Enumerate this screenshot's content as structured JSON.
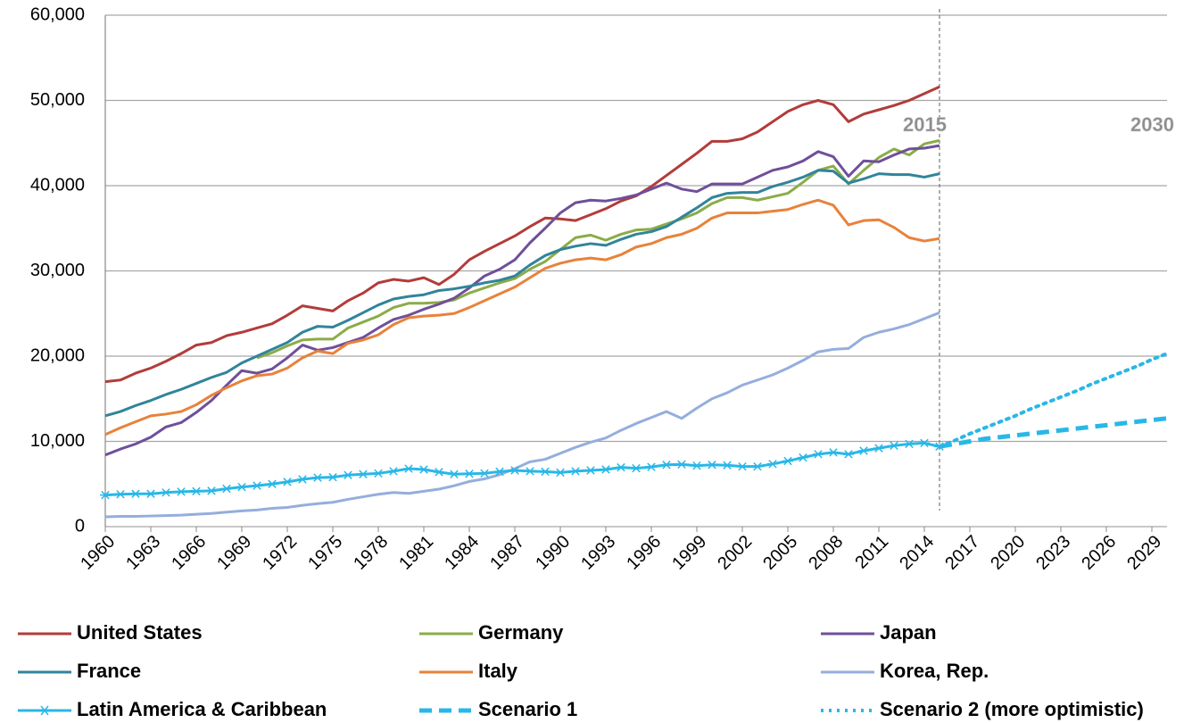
{
  "chart_data": {
    "type": "line",
    "x": [
      1960,
      1961,
      1962,
      1963,
      1964,
      1965,
      1966,
      1967,
      1968,
      1969,
      1970,
      1971,
      1972,
      1973,
      1974,
      1975,
      1976,
      1977,
      1978,
      1979,
      1980,
      1981,
      1982,
      1983,
      1984,
      1985,
      1986,
      1987,
      1988,
      1989,
      1990,
      1991,
      1992,
      1993,
      1994,
      1995,
      1996,
      1997,
      1998,
      1999,
      2000,
      2001,
      2002,
      2003,
      2004,
      2005,
      2006,
      2007,
      2008,
      2009,
      2010,
      2011,
      2012,
      2013,
      2014,
      2015,
      2016,
      2017,
      2018,
      2019,
      2020,
      2021,
      2022,
      2023,
      2024,
      2025,
      2026,
      2027,
      2028,
      2029,
      2030
    ],
    "xlim": [
      1960,
      2030
    ],
    "xticks": [
      1960,
      1963,
      1966,
      1969,
      1972,
      1975,
      1978,
      1981,
      1984,
      1987,
      1990,
      1993,
      1996,
      1999,
      2002,
      2005,
      2008,
      2011,
      2014,
      2017,
      2020,
      2023,
      2026,
      2029
    ],
    "ylim": [
      0,
      60000
    ],
    "yticks": [
      {
        "value": 0,
        "label": "0"
      },
      {
        "value": 10000,
        "label": "10,000"
      },
      {
        "value": 20000,
        "label": "20,000"
      },
      {
        "value": 30000,
        "label": "30,000"
      },
      {
        "value": 40000,
        "label": "40,000"
      },
      {
        "value": 50000,
        "label": "50,000"
      },
      {
        "value": 60000,
        "label": "60,000"
      }
    ],
    "grid": true,
    "vline": 2015,
    "annotations": [
      {
        "text": "2015",
        "x": 2015
      },
      {
        "text": "2030",
        "x": 2030
      }
    ],
    "series": [
      {
        "name": "United States",
        "color": "#b23c3a",
        "style": "solid",
        "values": [
          17000,
          17200,
          18000,
          18600,
          19400,
          20300,
          21300,
          21600,
          22400,
          22800,
          23300,
          23800,
          24800,
          25900,
          25600,
          25300,
          26500,
          27400,
          28600,
          29000,
          28800,
          29200,
          28400,
          29600,
          31300,
          32300,
          33200,
          34100,
          35200,
          36200,
          36100,
          35900,
          36600,
          37300,
          38200,
          38800,
          39900,
          41200,
          42500,
          43800,
          45200,
          45200,
          45500,
          46300,
          47500,
          48700,
          49500,
          50000,
          49500,
          47500,
          48400,
          48900,
          49400,
          50000,
          50800,
          51600,
          null,
          null,
          null,
          null,
          null,
          null,
          null,
          null,
          null,
          null,
          null,
          null,
          null,
          null,
          null
        ]
      },
      {
        "name": "Germany",
        "color": "#8aac48",
        "style": "solid",
        "values": [
          null,
          null,
          null,
          null,
          null,
          null,
          null,
          null,
          null,
          null,
          19800,
          20400,
          21200,
          21900,
          22000,
          22000,
          23300,
          24000,
          24700,
          25700,
          26200,
          26200,
          26300,
          26600,
          27400,
          28000,
          28600,
          29100,
          30200,
          31100,
          32500,
          33900,
          34200,
          33600,
          34300,
          34800,
          34900,
          35500,
          36100,
          36800,
          37900,
          38600,
          38600,
          38300,
          38700,
          39100,
          40400,
          41800,
          42300,
          40200,
          41800,
          43300,
          44300,
          43600,
          44900,
          45300,
          null,
          null,
          null,
          null,
          null,
          null,
          null,
          null,
          null,
          null,
          null,
          null,
          null,
          null,
          null
        ]
      },
      {
        "name": "Japan",
        "color": "#6f4f9a",
        "style": "solid",
        "values": [
          8400,
          9100,
          9700,
          10500,
          11700,
          12200,
          13400,
          14800,
          16600,
          18300,
          18000,
          18500,
          19800,
          21300,
          20700,
          21000,
          21600,
          22200,
          23300,
          24300,
          24800,
          25500,
          26100,
          26800,
          28000,
          29400,
          30200,
          31300,
          33300,
          35000,
          36800,
          38000,
          38300,
          38200,
          38500,
          38900,
          39600,
          40300,
          39600,
          39300,
          40200,
          40200,
          40200,
          41000,
          41800,
          42200,
          42900,
          44000,
          43400,
          41100,
          42900,
          42800,
          43600,
          44300,
          44400,
          44700,
          null,
          null,
          null,
          null,
          null,
          null,
          null,
          null,
          null,
          null,
          null,
          null,
          null,
          null,
          null
        ]
      },
      {
        "name": "France",
        "color": "#31849b",
        "style": "solid",
        "values": [
          13000,
          13500,
          14200,
          14800,
          15500,
          16100,
          16800,
          17500,
          18100,
          19200,
          20000,
          20800,
          21600,
          22800,
          23500,
          23400,
          24200,
          25100,
          26000,
          26700,
          27000,
          27200,
          27700,
          27900,
          28200,
          28600,
          28900,
          29400,
          30700,
          31800,
          32500,
          32900,
          33200,
          33000,
          33700,
          34300,
          34600,
          35200,
          36300,
          37400,
          38600,
          39100,
          39200,
          39200,
          39900,
          40400,
          41000,
          41800,
          41700,
          40300,
          40800,
          41400,
          41300,
          41300,
          41000,
          41400,
          null,
          null,
          null,
          null,
          null,
          null,
          null,
          null,
          null,
          null,
          null,
          null,
          null,
          null,
          null
        ]
      },
      {
        "name": "Italy",
        "color": "#e8823a",
        "style": "solid",
        "values": [
          10800,
          11600,
          12300,
          13000,
          13200,
          13500,
          14300,
          15400,
          16300,
          17100,
          17700,
          17900,
          18600,
          19800,
          20600,
          20300,
          21500,
          21900,
          22500,
          23700,
          24500,
          24700,
          24800,
          25000,
          25700,
          26500,
          27300,
          28100,
          29200,
          30300,
          30900,
          31300,
          31500,
          31300,
          31900,
          32800,
          33200,
          33900,
          34300,
          35000,
          36200,
          36800,
          36800,
          36800,
          37000,
          37200,
          37800,
          38300,
          37700,
          35400,
          35900,
          36000,
          35100,
          33900,
          33500,
          33800,
          null,
          null,
          null,
          null,
          null,
          null,
          null,
          null,
          null,
          null,
          null,
          null,
          null,
          null,
          null
        ]
      },
      {
        "name": "Korea, Rep.",
        "color": "#94aedd",
        "style": "solid",
        "values": [
          1150,
          1200,
          1200,
          1250,
          1300,
          1350,
          1450,
          1550,
          1700,
          1850,
          1950,
          2150,
          2250,
          2500,
          2700,
          2850,
          3200,
          3500,
          3800,
          4000,
          3900,
          4150,
          4400,
          4800,
          5300,
          5600,
          6100,
          6800,
          7600,
          7900,
          8600,
          9300,
          9900,
          10400,
          11300,
          12100,
          12800,
          13500,
          12700,
          13900,
          15000,
          15700,
          16600,
          17200,
          17800,
          18600,
          19500,
          20500,
          20800,
          20900,
          22200,
          22800,
          23200,
          23700,
          24400,
          25100,
          null,
          null,
          null,
          null,
          null,
          null,
          null,
          null,
          null,
          null,
          null,
          null,
          null,
          null,
          null
        ]
      },
      {
        "name": "Latin America & Caribbean",
        "color": "#29b7e8",
        "style": "solid",
        "marker": "asterisk",
        "values": [
          3700,
          3800,
          3850,
          3850,
          4000,
          4100,
          4150,
          4200,
          4450,
          4650,
          4800,
          5000,
          5250,
          5550,
          5750,
          5800,
          6050,
          6150,
          6250,
          6500,
          6800,
          6700,
          6400,
          6150,
          6200,
          6250,
          6450,
          6600,
          6500,
          6450,
          6350,
          6500,
          6600,
          6700,
          6950,
          6850,
          7000,
          7250,
          7300,
          7150,
          7250,
          7200,
          7050,
          7050,
          7350,
          7700,
          8100,
          8500,
          8700,
          8500,
          8900,
          9200,
          9500,
          9700,
          9800,
          9400,
          null,
          null,
          null,
          null,
          null,
          null,
          null,
          null,
          null,
          null,
          null,
          null,
          null,
          null,
          null
        ]
      },
      {
        "name": "Scenario 1",
        "color": "#29b7e8",
        "style": "dashed",
        "values": [
          null,
          null,
          null,
          null,
          null,
          null,
          null,
          null,
          null,
          null,
          null,
          null,
          null,
          null,
          null,
          null,
          null,
          null,
          null,
          null,
          null,
          null,
          null,
          null,
          null,
          null,
          null,
          null,
          null,
          null,
          null,
          null,
          null,
          null,
          null,
          null,
          null,
          null,
          null,
          null,
          null,
          null,
          null,
          null,
          null,
          null,
          null,
          null,
          null,
          null,
          null,
          null,
          null,
          null,
          null,
          9400,
          9700,
          10000,
          10300,
          10500,
          10700,
          10900,
          11100,
          11300,
          11500,
          11700,
          11900,
          12100,
          12300,
          12500,
          12700
        ]
      },
      {
        "name": "Scenario 2 (more optimistic)",
        "color": "#29b7e8",
        "style": "dotted",
        "values": [
          null,
          null,
          null,
          null,
          null,
          null,
          null,
          null,
          null,
          null,
          null,
          null,
          null,
          null,
          null,
          null,
          null,
          null,
          null,
          null,
          null,
          null,
          null,
          null,
          null,
          null,
          null,
          null,
          null,
          null,
          null,
          null,
          null,
          null,
          null,
          null,
          null,
          null,
          null,
          null,
          null,
          null,
          null,
          null,
          null,
          null,
          null,
          null,
          null,
          null,
          null,
          null,
          null,
          null,
          null,
          9400,
          10100,
          10900,
          11600,
          12300,
          13000,
          13800,
          14500,
          15200,
          15900,
          16700,
          17400,
          18100,
          18800,
          19600,
          20300
        ]
      }
    ]
  }
}
